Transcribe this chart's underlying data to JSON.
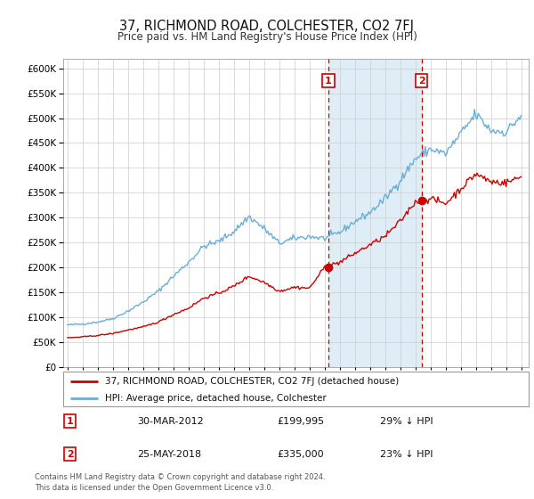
{
  "title": "37, RICHMOND ROAD, COLCHESTER, CO2 7FJ",
  "subtitle": "Price paid vs. HM Land Registry's House Price Index (HPI)",
  "legend_line1": "37, RICHMOND ROAD, COLCHESTER, CO2 7FJ (detached house)",
  "legend_line2": "HPI: Average price, detached house, Colchester",
  "footer": "Contains HM Land Registry data © Crown copyright and database right 2024.\nThis data is licensed under the Open Government Licence v3.0.",
  "transactions": [
    {
      "label": "1",
      "date": "30-MAR-2012",
      "price": "£199,995",
      "hpi_note": "29% ↓ HPI",
      "year": 2012.25
    },
    {
      "label": "2",
      "date": "25-MAY-2018",
      "price": "£335,000",
      "hpi_note": "23% ↓ HPI",
      "year": 2018.42
    }
  ],
  "hpi_color": "#6aaed6",
  "hpi_fill_color": "#daeaf5",
  "price_color": "#cc0000",
  "background_color": "#ffffff",
  "shade_color": "#daeaf5",
  "ylim": [
    0,
    620000
  ],
  "xlim_start": 1994.7,
  "xlim_end": 2025.5,
  "transaction1_price": 199995,
  "transaction2_price": 335000
}
